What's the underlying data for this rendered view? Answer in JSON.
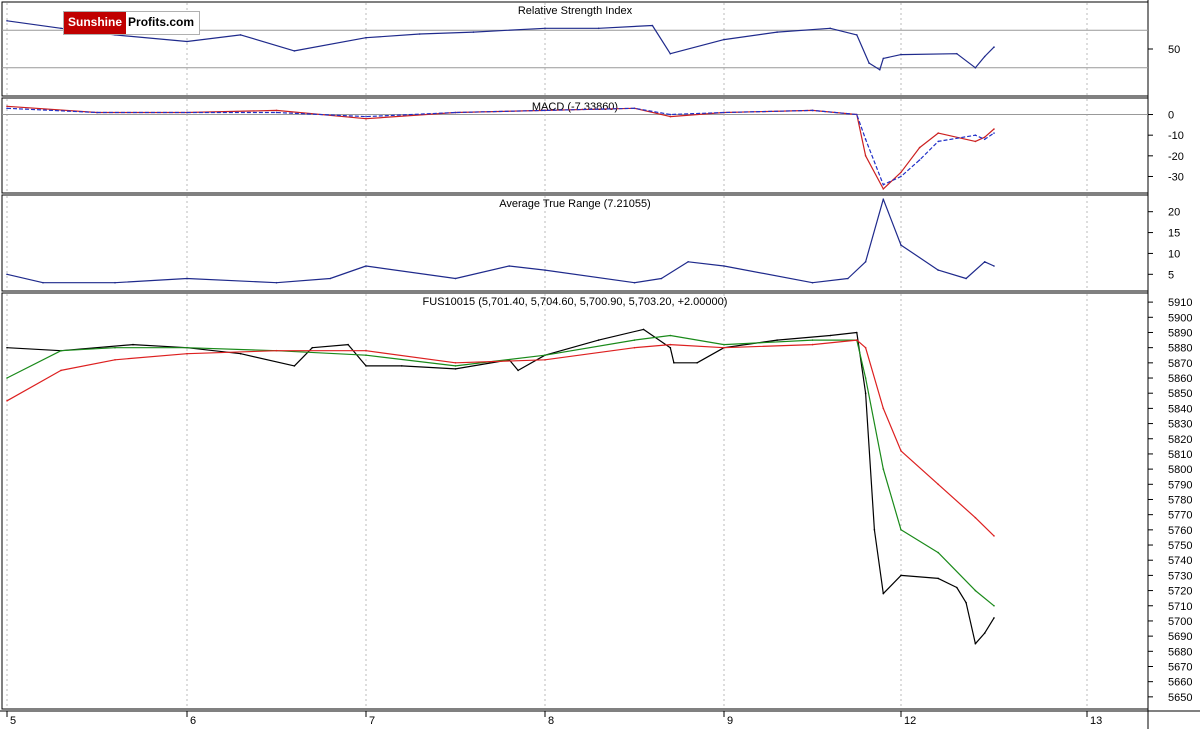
{
  "logo": {
    "part1": "Sunshine",
    "part2": "Profits.com"
  },
  "chart_data": [
    {
      "type": "line",
      "title": "Relative Strength Index",
      "y_ticks": [
        50
      ],
      "reference_lines": [
        70,
        30
      ],
      "ylim": [
        0,
        100
      ],
      "series": [
        {
          "color": "#1f2a8c",
          "x": [
            5.0,
            5.3,
            5.6,
            6.0,
            6.3,
            6.6,
            7.0,
            7.3,
            7.6,
            8.0,
            8.3,
            8.6,
            8.7,
            9.0,
            9.3,
            9.6,
            9.75,
            9.82,
            9.88,
            9.9,
            10.0,
            10.3,
            10.4,
            10.45,
            10.5
          ],
          "values": [
            80,
            72,
            65,
            58,
            65,
            48,
            62,
            66,
            68,
            72,
            72,
            75,
            45,
            60,
            68,
            72,
            65,
            35,
            28,
            40,
            44,
            45,
            30,
            42,
            52
          ]
        }
      ]
    },
    {
      "type": "line",
      "title": "MACD (-7.33860)",
      "y_ticks": [
        0,
        -10,
        -20,
        -30
      ],
      "ylim": [
        -38,
        8
      ],
      "series": [
        {
          "color": "#cc2020",
          "x": [
            5.0,
            5.5,
            6.0,
            6.5,
            7.0,
            7.5,
            8.0,
            8.5,
            8.7,
            9.0,
            9.5,
            9.75,
            9.8,
            9.9,
            10.0,
            10.1,
            10.2,
            10.4,
            10.45,
            10.5
          ],
          "values": [
            4,
            1,
            1,
            2,
            -2,
            1,
            2,
            3,
            -1,
            1,
            2,
            0,
            -20,
            -36,
            -28,
            -16,
            -9,
            -13,
            -11,
            -7
          ]
        },
        {
          "color": "#2030c8",
          "dashed": true,
          "x": [
            5.0,
            5.5,
            6.0,
            6.5,
            7.0,
            7.5,
            8.0,
            8.5,
            8.7,
            9.0,
            9.5,
            9.75,
            9.8,
            9.9,
            10.0,
            10.1,
            10.2,
            10.4,
            10.45,
            10.5
          ],
          "values": [
            3,
            1,
            1,
            1,
            -1,
            1,
            2,
            3,
            0,
            1,
            2,
            0,
            -12,
            -34,
            -30,
            -22,
            -13,
            -10,
            -12,
            -9
          ]
        }
      ]
    },
    {
      "type": "line",
      "title": "Average True Range (7.21055)",
      "y_ticks": [
        5,
        10,
        15,
        20
      ],
      "ylim": [
        1,
        24
      ],
      "series": [
        {
          "color": "#1f2a8c",
          "x": [
            5.0,
            5.2,
            5.6,
            6.0,
            6.5,
            6.8,
            7.0,
            7.5,
            7.8,
            8.0,
            8.5,
            8.65,
            8.8,
            9.0,
            9.5,
            9.7,
            9.8,
            9.9,
            10.0,
            10.2,
            10.35,
            10.45,
            10.5
          ],
          "values": [
            5,
            3,
            3,
            4,
            3,
            4,
            7,
            4,
            7,
            6,
            3,
            4,
            8,
            7,
            3,
            4,
            8,
            23,
            12,
            6,
            4,
            8,
            7
          ]
        }
      ]
    },
    {
      "type": "line",
      "title": "FUS10015 (5,701.40, 5,704.60, 5,700.90, 5,703.20, +2.00000)",
      "y_ticks": [
        5650,
        5660,
        5670,
        5680,
        5690,
        5700,
        5710,
        5720,
        5730,
        5740,
        5750,
        5760,
        5770,
        5780,
        5790,
        5800,
        5810,
        5820,
        5830,
        5840,
        5850,
        5860,
        5870,
        5880,
        5890,
        5900,
        5910
      ],
      "x_ticks": [
        "5",
        "6",
        "7",
        "8",
        "9",
        "12",
        "13"
      ],
      "ylim": [
        5642,
        5916
      ],
      "series": [
        {
          "color": "#000000",
          "x": [
            5.0,
            5.3,
            5.7,
            6.0,
            6.3,
            6.6,
            6.7,
            6.9,
            7.0,
            7.2,
            7.5,
            7.8,
            7.85,
            8.0,
            8.3,
            8.55,
            8.7,
            8.72,
            8.85,
            9.0,
            9.3,
            9.6,
            9.75,
            9.8,
            9.85,
            9.9,
            10.0,
            10.2,
            10.3,
            10.35,
            10.4,
            10.45,
            10.5
          ],
          "values": [
            5880,
            5878,
            5882,
            5880,
            5876,
            5868,
            5880,
            5882,
            5868,
            5868,
            5866,
            5872,
            5865,
            5875,
            5885,
            5892,
            5880,
            5870,
            5870,
            5880,
            5885,
            5888,
            5890,
            5850,
            5760,
            5718,
            5730,
            5728,
            5722,
            5712,
            5685,
            5692,
            5702
          ]
        },
        {
          "color": "#1a8a1a",
          "x": [
            5.0,
            5.3,
            5.6,
            6.0,
            6.5,
            7.0,
            7.5,
            8.0,
            8.5,
            8.7,
            9.0,
            9.5,
            9.75,
            9.8,
            9.9,
            10.0,
            10.2,
            10.4,
            10.5
          ],
          "values": [
            5860,
            5878,
            5880,
            5880,
            5878,
            5875,
            5868,
            5875,
            5885,
            5888,
            5882,
            5885,
            5885,
            5860,
            5800,
            5760,
            5745,
            5720,
            5710
          ]
        },
        {
          "color": "#dd2020",
          "x": [
            5.0,
            5.3,
            5.6,
            6.0,
            6.5,
            7.0,
            7.5,
            8.0,
            8.5,
            8.7,
            9.0,
            9.5,
            9.75,
            9.8,
            9.9,
            10.0,
            10.2,
            10.4,
            10.5
          ],
          "values": [
            5845,
            5865,
            5872,
            5876,
            5878,
            5878,
            5870,
            5872,
            5880,
            5882,
            5880,
            5882,
            5885,
            5880,
            5840,
            5812,
            5790,
            5768,
            5756
          ]
        }
      ]
    }
  ]
}
